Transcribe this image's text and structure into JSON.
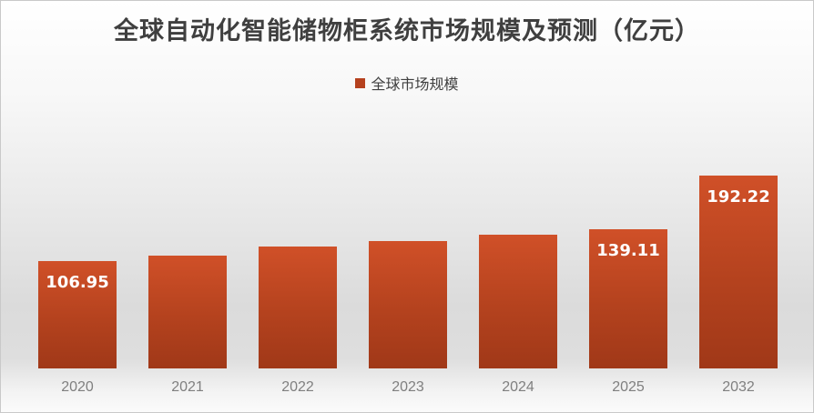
{
  "chart": {
    "title": "全球自动化智能储物柜系统市场规模及预测（亿元）",
    "legend_label": "全球市场规模"
  },
  "colors": {
    "bar_gradient_top": "#D05028",
    "bar_gradient_mid": "#B4421E",
    "bar_gradient_bottom": "#A03818",
    "legend_marker": "#B5411E",
    "title_text": "#3F3F3F",
    "axis_label_text": "#7F7F7F",
    "value_label_text": "#FFFFFF"
  },
  "chart_data": {
    "type": "bar",
    "title": "全球自动化智能储物柜系统市场规模及预测（亿元）",
    "unit": "亿元",
    "legend": [
      "全球市场规模"
    ],
    "legend_position": "top-center",
    "grid": false,
    "y_axis_shown": false,
    "categories": [
      "2020",
      "2021",
      "2022",
      "2023",
      "2024",
      "2025",
      "2032"
    ],
    "series": [
      {
        "name": "全球市场规模",
        "values": [
          106.95,
          112.3,
          121.3,
          126.9,
          133.1,
          139.11,
          192.22
        ]
      }
    ],
    "values": [
      106.95,
      112.3,
      121.3,
      126.9,
      133.1,
      139.11,
      192.22
    ],
    "data_labels_shown": [
      "106.95",
      "",
      "",
      "",
      "",
      "139.11",
      "192.22"
    ],
    "note": "values for 2021-2024 estimated from bar heights; only 2020, 2025, 2032 have visible data labels"
  }
}
